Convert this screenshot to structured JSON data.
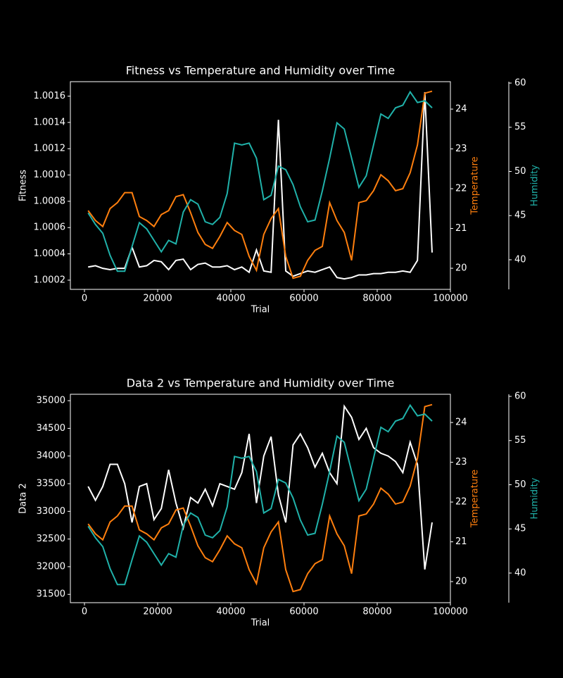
{
  "chart_data": [
    {
      "type": "line",
      "title": "Fitness vs Temperature and Humidity over Time",
      "xlabel": "Trial",
      "ylabel": "Fitness",
      "y2label": "Temperature",
      "y3label": "Humidity",
      "x": [
        1000,
        3000,
        5000,
        7000,
        9000,
        11000,
        13000,
        15000,
        17000,
        19000,
        21000,
        23000,
        25000,
        27000,
        29000,
        31000,
        33000,
        35000,
        37000,
        39000,
        41000,
        43000,
        45000,
        47000,
        49000,
        51000,
        53000,
        55000,
        57000,
        59000,
        61000,
        63000,
        65000,
        67000,
        69000,
        71000,
        73000,
        75000,
        77000,
        79000,
        81000,
        83000,
        85000,
        87000,
        89000,
        91000,
        93000,
        95000
      ],
      "xlim": [
        -3850,
        100000
      ],
      "xticks": [
        0,
        20000,
        40000,
        60000,
        80000,
        100000
      ],
      "ylim": [
        1.00013,
        1.00171
      ],
      "yticks": [
        1.0002,
        1.0004,
        1.0006,
        1.0008,
        {
          "value": 1.001,
          "label": "1.0010"
        },
        1.0012,
        1.0014,
        1.0016
      ],
      "y2lim": [
        19.47,
        24.69
      ],
      "y2ticks": [
        20,
        21,
        22,
        23,
        24
      ],
      "y3lim": [
        36.65,
        60.16
      ],
      "y3ticks": [
        40,
        45,
        50,
        55,
        60
      ],
      "series": [
        {
          "name": "Fitness",
          "color": "#ffffff",
          "axis": "y",
          "values": [
            1.0003,
            1.00031,
            1.00029,
            1.00028,
            1.00029,
            1.00029,
            1.00045,
            1.0003,
            1.00031,
            1.00035,
            1.00034,
            1.00028,
            1.00035,
            1.00036,
            1.00028,
            1.00032,
            1.00033,
            1.0003,
            1.0003,
            1.00031,
            1.00028,
            1.0003,
            1.00026,
            1.00043,
            1.00027,
            1.00026,
            1.00142,
            1.00027,
            1.00023,
            1.00025,
            1.00027,
            1.00026,
            1.00028,
            1.0003,
            1.00022,
            1.00021,
            1.00022,
            1.00024,
            1.00024,
            1.00025,
            1.00025,
            1.00026,
            1.00026,
            1.00027,
            1.00026,
            1.00035,
            1.00163,
            1.00041
          ]
        },
        {
          "name": "Temperature",
          "color": "#ff7f0e",
          "axis": "y2",
          "values": [
            21.45,
            21.2,
            21.05,
            21.5,
            21.65,
            21.9,
            21.9,
            21.3,
            21.2,
            21.05,
            21.35,
            21.45,
            21.8,
            21.85,
            21.4,
            20.9,
            20.6,
            20.5,
            20.8,
            21.15,
            20.95,
            20.85,
            20.3,
            19.95,
            20.85,
            21.25,
            21.5,
            20.3,
            19.75,
            19.8,
            20.2,
            20.45,
            20.55,
            21.65,
            21.2,
            20.9,
            20.2,
            21.65,
            21.7,
            21.95,
            22.35,
            22.2,
            21.95,
            22.0,
            22.4,
            23.1,
            24.4,
            24.45
          ]
        },
        {
          "name": "Humidity",
          "color": "#20b2aa",
          "axis": "y3",
          "values": [
            45.3,
            44.0,
            43.0,
            40.5,
            38.7,
            38.7,
            41.5,
            44.2,
            43.5,
            42.2,
            40.9,
            42.2,
            41.8,
            45.4,
            46.8,
            46.3,
            44.3,
            44.0,
            44.8,
            47.5,
            53.2,
            53.0,
            53.2,
            51.5,
            46.8,
            47.3,
            50.6,
            50.2,
            48.5,
            46.0,
            44.3,
            44.5,
            47.8,
            51.5,
            55.5,
            54.8,
            51.5,
            48.2,
            49.5,
            53.0,
            56.5,
            56.0,
            57.2,
            57.5,
            59.0,
            57.8,
            58.0,
            57.2
          ]
        }
      ]
    },
    {
      "type": "line",
      "title": "Data 2 vs Temperature and Humidity over Time",
      "xlabel": "Trial",
      "ylabel": "Data 2",
      "y2label": "Temperature",
      "y3label": "Humidity",
      "x": [
        1000,
        3000,
        5000,
        7000,
        9000,
        11000,
        13000,
        15000,
        17000,
        19000,
        21000,
        23000,
        25000,
        27000,
        29000,
        31000,
        33000,
        35000,
        37000,
        39000,
        41000,
        43000,
        45000,
        47000,
        49000,
        51000,
        53000,
        55000,
        57000,
        59000,
        61000,
        63000,
        65000,
        67000,
        69000,
        71000,
        73000,
        75000,
        77000,
        79000,
        81000,
        83000,
        85000,
        87000,
        89000,
        91000,
        93000,
        95000
      ],
      "xlim": [
        -3850,
        100000
      ],
      "xticks": [
        0,
        20000,
        40000,
        60000,
        80000,
        100000
      ],
      "ylim": [
        31350,
        35116
      ],
      "yticks": [
        31500,
        32000,
        32500,
        33000,
        33500,
        34000,
        34500,
        35000
      ],
      "y2lim": [
        19.47,
        24.71
      ],
      "y2ticks": [
        20,
        21,
        22,
        23,
        24
      ],
      "y3lim": [
        36.65,
        60.24
      ],
      "y3ticks": [
        40,
        45,
        50,
        55,
        60
      ],
      "series": [
        {
          "name": "Data 2",
          "color": "#ffffff",
          "axis": "y",
          "values": [
            33450,
            33200,
            33450,
            33850,
            33850,
            33500,
            32800,
            33450,
            33500,
            32850,
            33050,
            33750,
            33150,
            32700,
            33250,
            33150,
            33400,
            33100,
            33500,
            33450,
            33400,
            33700,
            34400,
            33150,
            34000,
            34350,
            33300,
            32800,
            34200,
            34400,
            34150,
            33800,
            34050,
            33700,
            33500,
            34900,
            34700,
            34300,
            34500,
            34150,
            34050,
            34000,
            33900,
            33700,
            34250,
            33850,
            31950,
            32800
          ]
        },
        {
          "name": "Temperature",
          "color": "#ff7f0e",
          "axis": "y2",
          "values": [
            21.45,
            21.2,
            21.05,
            21.5,
            21.65,
            21.9,
            21.9,
            21.3,
            21.2,
            21.05,
            21.35,
            21.45,
            21.8,
            21.85,
            21.4,
            20.9,
            20.6,
            20.5,
            20.8,
            21.15,
            20.95,
            20.85,
            20.3,
            19.95,
            20.85,
            21.25,
            21.5,
            20.3,
            19.75,
            19.8,
            20.2,
            20.45,
            20.55,
            21.65,
            21.2,
            20.9,
            20.2,
            21.65,
            21.7,
            21.95,
            22.35,
            22.2,
            21.95,
            22.0,
            22.4,
            23.1,
            24.4,
            24.45
          ]
        },
        {
          "name": "Humidity",
          "color": "#20b2aa",
          "axis": "y3",
          "values": [
            45.3,
            44.0,
            43.0,
            40.5,
            38.7,
            38.7,
            41.5,
            44.2,
            43.5,
            42.2,
            40.9,
            42.2,
            41.8,
            45.4,
            46.8,
            46.3,
            44.3,
            44.0,
            44.8,
            47.5,
            53.2,
            53.0,
            53.2,
            51.5,
            46.8,
            47.3,
            50.6,
            50.2,
            48.5,
            46.0,
            44.3,
            44.5,
            47.8,
            51.5,
            55.5,
            54.8,
            51.5,
            48.2,
            49.5,
            53.0,
            56.5,
            56.0,
            57.2,
            57.5,
            59.0,
            57.8,
            58.0,
            57.2
          ]
        }
      ]
    }
  ]
}
